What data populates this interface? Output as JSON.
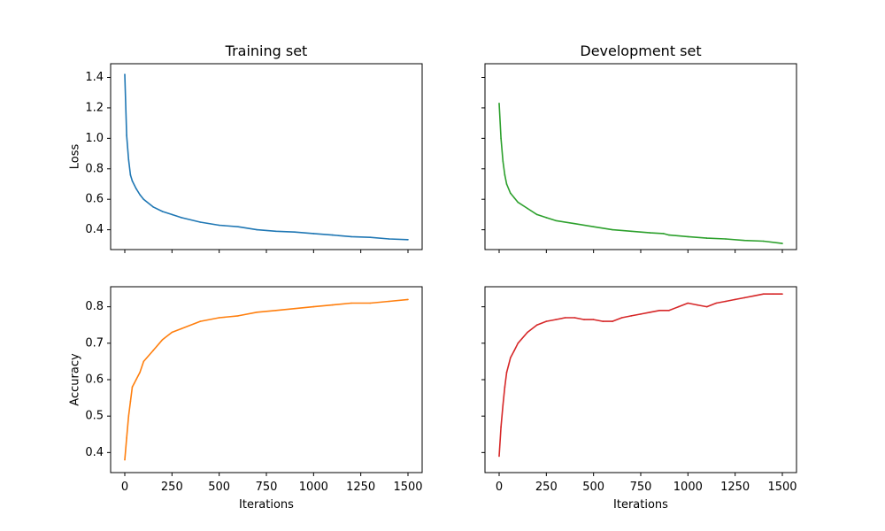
{
  "chart_data": [
    {
      "type": "line",
      "title": "Training set",
      "xlabel": "",
      "ylabel": "Loss",
      "xlim": [
        -75,
        1575
      ],
      "ylim": [
        0.27,
        1.49
      ],
      "x_ticks": [
        0,
        250,
        500,
        750,
        1000,
        1250,
        1500
      ],
      "y_ticks": [
        0.4,
        0.6,
        0.8,
        1.0,
        1.2,
        1.4
      ],
      "y_tick_labels": [
        "0.4",
        "0.6",
        "0.8",
        "1.0",
        "1.2",
        "1.4"
      ],
      "show_x_tick_labels": false,
      "show_y_tick_labels": true,
      "color": "#1f77b4",
      "series": [
        {
          "x": [
            0,
            10,
            20,
            30,
            40,
            60,
            80,
            100,
            150,
            200,
            250,
            300,
            400,
            500,
            600,
            700,
            800,
            900,
            1000,
            1100,
            1200,
            1300,
            1400,
            1500
          ],
          "values": [
            1.42,
            1.02,
            0.86,
            0.76,
            0.72,
            0.67,
            0.63,
            0.6,
            0.55,
            0.52,
            0.5,
            0.48,
            0.45,
            0.43,
            0.42,
            0.4,
            0.39,
            0.385,
            0.375,
            0.365,
            0.355,
            0.35,
            0.34,
            0.335
          ]
        }
      ]
    },
    {
      "type": "line",
      "title": "Development set",
      "xlabel": "",
      "ylabel": "",
      "xlim": [
        -75,
        1575
      ],
      "ylim": [
        0.27,
        1.49
      ],
      "x_ticks": [
        0,
        250,
        500,
        750,
        1000,
        1250,
        1500
      ],
      "y_ticks": [
        0.4,
        0.6,
        0.8,
        1.0,
        1.2,
        1.4
      ],
      "show_x_tick_labels": false,
      "show_y_tick_labels": false,
      "color": "#2ca02c",
      "series": [
        {
          "x": [
            0,
            10,
            20,
            30,
            40,
            60,
            80,
            100,
            150,
            200,
            250,
            300,
            400,
            500,
            600,
            700,
            800,
            870,
            900,
            1000,
            1100,
            1200,
            1300,
            1400,
            1500
          ],
          "values": [
            1.23,
            1.0,
            0.85,
            0.76,
            0.7,
            0.64,
            0.61,
            0.58,
            0.54,
            0.5,
            0.48,
            0.46,
            0.44,
            0.42,
            0.4,
            0.39,
            0.38,
            0.375,
            0.365,
            0.355,
            0.345,
            0.34,
            0.33,
            0.325,
            0.31
          ]
        }
      ]
    },
    {
      "type": "line",
      "title": "",
      "xlabel": "Iterations",
      "ylabel": "Accuracy",
      "xlim": [
        -75,
        1575
      ],
      "ylim": [
        0.345,
        0.855
      ],
      "x_ticks": [
        0,
        250,
        500,
        750,
        1000,
        1250,
        1500
      ],
      "x_tick_labels": [
        "0",
        "250",
        "500",
        "750",
        "1000",
        "1250",
        "1500"
      ],
      "y_ticks": [
        0.4,
        0.5,
        0.6,
        0.7,
        0.8
      ],
      "y_tick_labels": [
        "0.4",
        "0.5",
        "0.6",
        "0.7",
        "0.8"
      ],
      "show_x_tick_labels": true,
      "show_y_tick_labels": true,
      "color": "#ff7f0e",
      "series": [
        {
          "x": [
            0,
            10,
            20,
            30,
            40,
            50,
            60,
            80,
            100,
            150,
            200,
            250,
            300,
            400,
            500,
            600,
            700,
            800,
            900,
            1000,
            1100,
            1200,
            1300,
            1400,
            1500
          ],
          "values": [
            0.38,
            0.44,
            0.5,
            0.54,
            0.58,
            0.59,
            0.6,
            0.62,
            0.65,
            0.68,
            0.71,
            0.73,
            0.74,
            0.76,
            0.77,
            0.775,
            0.785,
            0.79,
            0.795,
            0.8,
            0.805,
            0.81,
            0.81,
            0.815,
            0.82
          ]
        }
      ]
    },
    {
      "type": "line",
      "title": "",
      "xlabel": "Iterations",
      "ylabel": "",
      "xlim": [
        -75,
        1575
      ],
      "ylim": [
        0.345,
        0.855
      ],
      "x_ticks": [
        0,
        250,
        500,
        750,
        1000,
        1250,
        1500
      ],
      "x_tick_labels": [
        "0",
        "250",
        "500",
        "750",
        "1000",
        "1250",
        "1500"
      ],
      "y_ticks": [
        0.4,
        0.5,
        0.6,
        0.7,
        0.8
      ],
      "show_x_tick_labels": true,
      "show_y_tick_labels": false,
      "color": "#d62728",
      "series": [
        {
          "x": [
            0,
            10,
            20,
            30,
            40,
            50,
            60,
            80,
            100,
            150,
            200,
            250,
            300,
            350,
            400,
            450,
            500,
            550,
            600,
            650,
            700,
            750,
            800,
            850,
            900,
            950,
            1000,
            1050,
            1100,
            1150,
            1200,
            1250,
            1300,
            1350,
            1400,
            1450,
            1500
          ],
          "values": [
            0.39,
            0.47,
            0.53,
            0.58,
            0.62,
            0.64,
            0.66,
            0.68,
            0.7,
            0.73,
            0.75,
            0.76,
            0.765,
            0.77,
            0.77,
            0.765,
            0.765,
            0.76,
            0.76,
            0.77,
            0.775,
            0.78,
            0.785,
            0.79,
            0.79,
            0.8,
            0.81,
            0.805,
            0.8,
            0.81,
            0.815,
            0.82,
            0.825,
            0.83,
            0.835,
            0.835,
            0.835
          ]
        }
      ]
    }
  ]
}
